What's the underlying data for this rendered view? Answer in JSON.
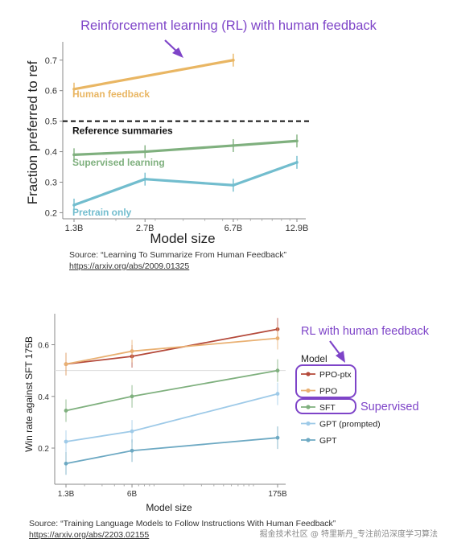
{
  "chart_data": [
    {
      "type": "line",
      "title": "Reinforcement learning (RL) with human feedback",
      "xlabel": "Model size",
      "ylabel": "Fraction preferred to ref",
      "x_ticks": [
        "1.3B",
        "2.7B",
        "6.7B",
        "12.9B"
      ],
      "x_scale": "log",
      "x_values_billions": [
        1.3,
        2.7,
        6.7,
        12.9
      ],
      "y_ticks": [
        "0.2",
        "0.3",
        "0.4",
        "0.5",
        "0.6",
        "0.7"
      ],
      "ylim": [
        0.18,
        0.76
      ],
      "reference": {
        "value": 0.5,
        "label": "Reference summaries"
      },
      "series": [
        {
          "name": "Human feedback",
          "color": "#E9B663",
          "x": [
            "1.3B",
            "6.7B"
          ],
          "values": [
            0.605,
            0.7
          ]
        },
        {
          "name": "Supervised learning",
          "color": "#7FB07E",
          "x": [
            "1.3B",
            "2.7B",
            "6.7B",
            "12.9B"
          ],
          "values": [
            0.39,
            0.4,
            0.42,
            0.435
          ]
        },
        {
          "name": "Pretrain only",
          "color": "#72BDCE",
          "x": [
            "1.3B",
            "2.7B",
            "6.7B",
            "12.9B"
          ],
          "values": [
            0.225,
            0.31,
            0.29,
            0.365
          ]
        }
      ],
      "grid": false
    },
    {
      "type": "line",
      "xlabel": "Model size",
      "ylabel": "Win rate against SFT 175B",
      "x_ticks": [
        "1.3B",
        "6B",
        "175B"
      ],
      "x_scale": "log",
      "x_values_billions": [
        1.3,
        6,
        175
      ],
      "y_ticks": [
        "0.2",
        "0.4",
        "0.6"
      ],
      "ylim": [
        0.06,
        0.72
      ],
      "reference": {
        "value": 0.5
      },
      "legend": {
        "title": "Model",
        "placement": "right"
      },
      "series": [
        {
          "name": "PPO-ptx",
          "color": "#B4493A",
          "values": [
            0.525,
            0.555,
            0.66
          ]
        },
        {
          "name": "PPO",
          "color": "#E9B072",
          "values": [
            0.525,
            0.575,
            0.625
          ]
        },
        {
          "name": "SFT",
          "color": "#7FB07E",
          "values": [
            0.345,
            0.4,
            0.5
          ]
        },
        {
          "name": "GPT (prompted)",
          "color": "#9ECAE8",
          "values": [
            0.225,
            0.265,
            0.41
          ]
        },
        {
          "name": "GPT",
          "color": "#6DA9C3",
          "values": [
            0.14,
            0.19,
            0.24
          ]
        }
      ],
      "annotations": {
        "rl": "RL with human feedback",
        "supervised": "Supervised"
      },
      "grid": false
    }
  ],
  "sources": {
    "top_line1": "Source: “Learning To Summarize From Human Feedback”",
    "top_line2": "https://arxiv.org/abs/2009.01325",
    "bottom_line1": "Source: “Training Language Models to Follow Instructions With Human Feedback”",
    "bottom_line2": "https://arxiv.org/abs/2203.02155"
  },
  "watermark": "掘金技术社区 @ 特里斯丹_专注前沿深度学习算法",
  "colors": {
    "annotation": "#7E44C8"
  }
}
